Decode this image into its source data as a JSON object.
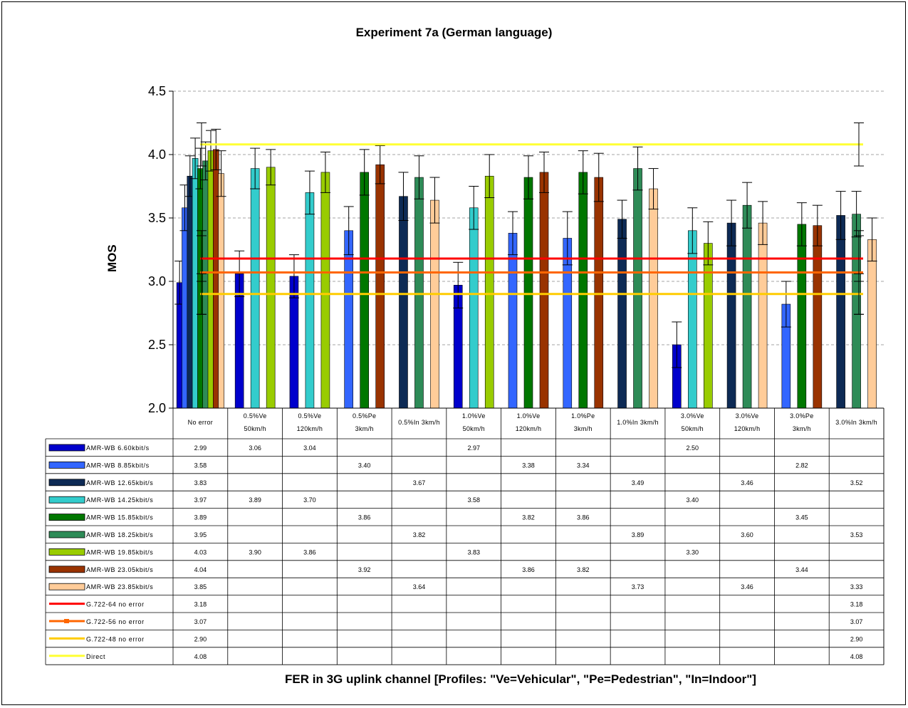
{
  "chart_data": {
    "type": "bar",
    "title": "Experiment 7a (German language)",
    "ylabel": "MOS",
    "xlabel": "FER in 3G uplink channel [Profiles: \"Ve=Vehicular\", \"Pe=Pedestrian\", \"In=Indoor\"]",
    "ylim": [
      2.0,
      4.5
    ],
    "yticks": [
      "2.0",
      "2.5",
      "3.0",
      "3.5",
      "4.0",
      "4.5"
    ],
    "grid": "horizontal dashed",
    "legend": "data table below plot",
    "categories": [
      [
        "No error"
      ],
      [
        "0.5%Ve",
        "50km/h"
      ],
      [
        "0.5%Ve",
        "120km/h"
      ],
      [
        "0.5%Pe",
        "3km/h"
      ],
      [
        "0.5%In 3km/h"
      ],
      [
        "1.0%Ve",
        "50km/h"
      ],
      [
        "1.0%Ve",
        "120km/h"
      ],
      [
        "1.0%Pe",
        "3km/h"
      ],
      [
        "1.0%In 3km/h"
      ],
      [
        "3.0%Ve",
        "50km/h"
      ],
      [
        "3.0%Ve",
        "120km/h"
      ],
      [
        "3.0%Pe",
        "3km/h"
      ],
      [
        "3.0%In 3km/h"
      ]
    ],
    "series": [
      {
        "name": "AMR-WB 6.60kbit/s",
        "color": "#0000CC",
        "values": [
          2.99,
          3.06,
          3.04,
          null,
          null,
          2.97,
          null,
          null,
          null,
          2.5,
          null,
          null,
          null
        ],
        "err": [
          0.17,
          0.18,
          0.17,
          null,
          null,
          0.18,
          null,
          null,
          null,
          0.18,
          null,
          null,
          null
        ]
      },
      {
        "name": "AMR-WB 8.85kbit/s",
        "color": "#3366FF",
        "values": [
          3.58,
          null,
          null,
          3.4,
          null,
          null,
          3.38,
          3.34,
          null,
          null,
          null,
          2.82,
          null
        ],
        "err": [
          0.18,
          null,
          null,
          0.19,
          null,
          null,
          0.17,
          0.21,
          null,
          null,
          null,
          0.18,
          null
        ]
      },
      {
        "name": "AMR-WB 12.65kbit/s",
        "color": "#0D2A55",
        "values": [
          3.83,
          null,
          null,
          null,
          3.67,
          null,
          null,
          null,
          3.49,
          null,
          3.46,
          null,
          3.52
        ],
        "err": [
          0.16,
          null,
          null,
          null,
          0.19,
          null,
          null,
          null,
          0.15,
          null,
          0.18,
          null,
          0.19
        ]
      },
      {
        "name": "AMR-WB 14.25kbit/s",
        "color": "#33CCCC",
        "values": [
          3.97,
          3.89,
          3.7,
          null,
          null,
          3.58,
          null,
          null,
          null,
          3.4,
          null,
          null,
          null
        ],
        "err": [
          0.16,
          0.16,
          0.17,
          null,
          null,
          0.17,
          null,
          null,
          null,
          0.18,
          null,
          null,
          null
        ]
      },
      {
        "name": "AMR-WB 15.85kbit/s",
        "color": "#007700",
        "values": [
          3.89,
          null,
          null,
          3.86,
          null,
          null,
          3.82,
          3.86,
          null,
          null,
          null,
          3.45,
          null
        ],
        "err": [
          0.16,
          null,
          null,
          0.18,
          null,
          null,
          0.17,
          0.17,
          null,
          null,
          null,
          0.17,
          null
        ]
      },
      {
        "name": "AMR-WB 18.25kbit/s",
        "color": "#2E8B57",
        "values": [
          3.95,
          null,
          null,
          null,
          3.82,
          null,
          null,
          null,
          3.89,
          null,
          3.6,
          null,
          3.53
        ],
        "err": [
          0.15,
          null,
          null,
          null,
          0.17,
          null,
          null,
          null,
          0.17,
          null,
          0.18,
          null,
          0.18
        ]
      },
      {
        "name": "AMR-WB 19.85kbit/s",
        "color": "#99CC00",
        "values": [
          4.03,
          3.9,
          3.86,
          null,
          null,
          3.83,
          null,
          null,
          null,
          3.3,
          null,
          null,
          null
        ],
        "err": [
          0.16,
          0.14,
          0.16,
          null,
          null,
          0.17,
          null,
          null,
          null,
          0.17,
          null,
          null,
          null
        ]
      },
      {
        "name": "AMR-WB 23.05kbit/s",
        "color": "#993300",
        "values": [
          4.04,
          null,
          null,
          3.92,
          null,
          null,
          3.86,
          3.82,
          null,
          null,
          null,
          3.44,
          null
        ],
        "err": [
          0.16,
          null,
          null,
          0.15,
          null,
          null,
          0.16,
          0.19,
          null,
          null,
          null,
          0.16,
          null
        ]
      },
      {
        "name": "AMR-WB 23.85kbit/s",
        "color": "#FFCC99",
        "values": [
          3.85,
          null,
          null,
          null,
          3.64,
          null,
          null,
          null,
          3.73,
          null,
          3.46,
          null,
          3.33
        ],
        "err": [
          0.18,
          null,
          null,
          null,
          0.18,
          null,
          null,
          null,
          0.16,
          null,
          0.17,
          null,
          0.17
        ]
      }
    ],
    "references": [
      {
        "name": "G.722-64 no error",
        "color": "#FF0000",
        "value": 3.18,
        "first": "3.18",
        "last": "3.18"
      },
      {
        "name": "G.722-56 no error",
        "color": "#FF6600",
        "value": 3.07,
        "first": "3.07",
        "last": "3.07"
      },
      {
        "name": "G.722-48 no error",
        "color": "#FFCC00",
        "value": 2.9,
        "first": "2.90",
        "last": "2.90"
      },
      {
        "name": "Direct",
        "color": "#FFFF33",
        "value": 4.08,
        "first": "4.08",
        "last": "4.08"
      }
    ],
    "table_values": [
      [
        "2.99",
        "3.06",
        "3.04",
        "",
        "",
        "2.97",
        "",
        "",
        "",
        "2.50",
        "",
        "",
        ""
      ],
      [
        "3.58",
        "",
        "",
        "3.40",
        "",
        "",
        "3.38",
        "3.34",
        "",
        "",
        "",
        "2.82",
        ""
      ],
      [
        "3.83",
        "",
        "",
        "",
        "3.67",
        "",
        "",
        "",
        "3.49",
        "",
        "3.46",
        "",
        "3.52"
      ],
      [
        "3.97",
        "3.89",
        "3.70",
        "",
        "",
        "3.58",
        "",
        "",
        "",
        "3.40",
        "",
        "",
        ""
      ],
      [
        "3.89",
        "",
        "",
        "3.86",
        "",
        "",
        "3.82",
        "3.86",
        "",
        "",
        "",
        "3.45",
        ""
      ],
      [
        "3.95",
        "",
        "",
        "",
        "3.82",
        "",
        "",
        "",
        "3.89",
        "",
        "3.60",
        "",
        "3.53"
      ],
      [
        "4.03",
        "3.90",
        "3.86",
        "",
        "",
        "3.83",
        "",
        "",
        "",
        "3.30",
        "",
        "",
        ""
      ],
      [
        "4.04",
        "",
        "",
        "3.92",
        "",
        "",
        "3.86",
        "3.82",
        "",
        "",
        "",
        "3.44",
        ""
      ],
      [
        "3.85",
        "",
        "",
        "",
        "3.64",
        "",
        "",
        "",
        "3.73",
        "",
        "3.46",
        "",
        "3.33"
      ]
    ]
  }
}
